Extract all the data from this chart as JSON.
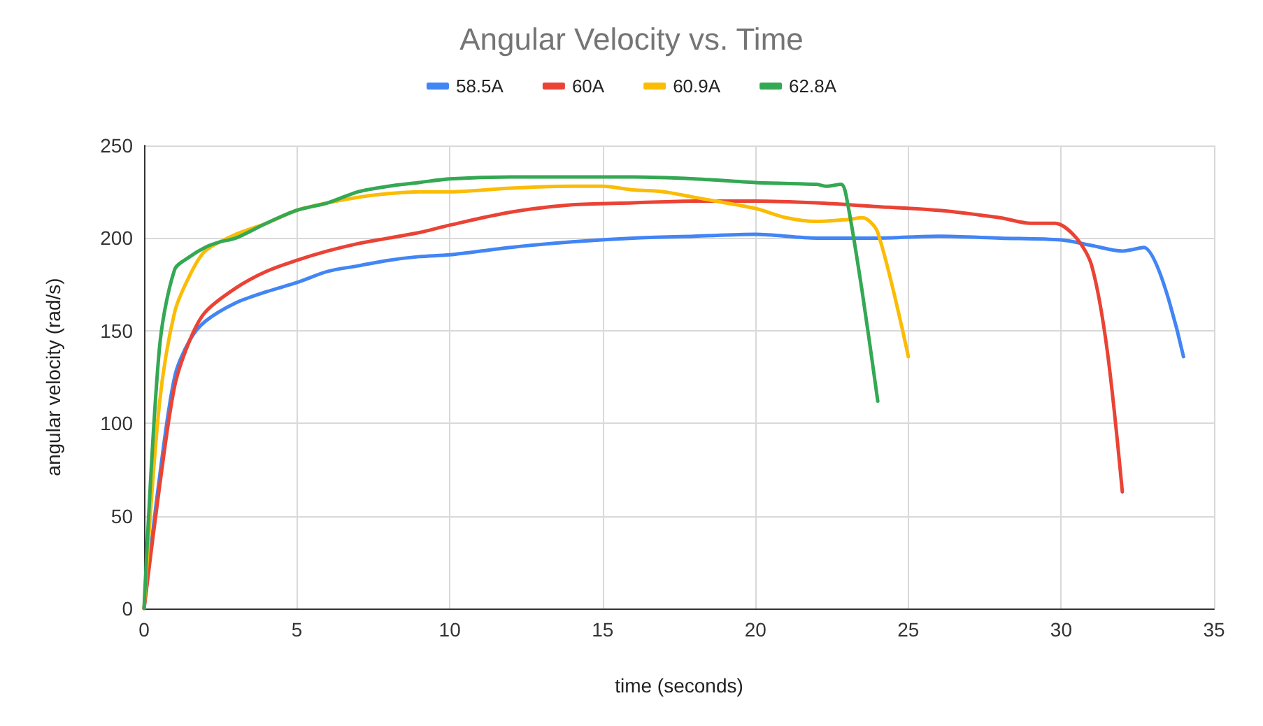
{
  "chart_data": {
    "type": "line",
    "title": "Angular Velocity vs. Time",
    "xlabel": "time (seconds)",
    "ylabel": "angular velocity (rad/s)",
    "xlim": [
      0,
      35
    ],
    "xticks": [
      0,
      5,
      10,
      15,
      20,
      25,
      30,
      35
    ],
    "ylim": [
      0,
      250
    ],
    "yticks": [
      0,
      50,
      100,
      150,
      200,
      250
    ],
    "grid": true,
    "legend": "top",
    "marker": "none",
    "line_style": "solid",
    "series": [
      {
        "name": "58.5A",
        "color": "#4285f4",
        "x": [
          0,
          0.5,
          1,
          1.5,
          2,
          3,
          4,
          5,
          6,
          7,
          8,
          9,
          10,
          12,
          14,
          16,
          18,
          20,
          22,
          24,
          26,
          28,
          30,
          31,
          32,
          32.7,
          34
        ],
        "values": [
          0,
          70,
          125,
          145,
          155,
          165,
          171,
          176,
          182,
          185,
          188,
          190,
          191,
          195,
          198,
          200,
          201,
          202,
          200,
          200,
          201,
          200,
          199,
          196,
          193,
          195,
          136
        ]
      },
      {
        "name": "60A",
        "color": "#ea4335",
        "x": [
          0,
          0.5,
          1,
          1.5,
          2,
          3,
          4,
          5,
          6,
          7,
          8,
          9,
          10,
          12,
          14,
          16,
          18,
          20,
          22,
          24,
          26,
          28,
          29,
          29.8,
          30.5,
          31,
          31.5,
          32
        ],
        "values": [
          0,
          65,
          120,
          145,
          160,
          173,
          182,
          188,
          193,
          197,
          200,
          203,
          207,
          214,
          218,
          219,
          220,
          220,
          219,
          217,
          215,
          211,
          208,
          208,
          200,
          185,
          140,
          63
        ]
      },
      {
        "name": "60.9A",
        "color": "#fbbc04",
        "x": [
          0,
          0.5,
          1,
          1.5,
          2,
          3,
          4,
          5,
          6,
          7,
          8,
          9,
          10,
          12,
          14,
          15,
          16,
          17,
          18,
          20,
          21,
          22,
          23,
          23.5,
          24,
          25
        ],
        "values": [
          0,
          110,
          160,
          180,
          193,
          202,
          208,
          215,
          219,
          222,
          224,
          225,
          225,
          227,
          228,
          228,
          226,
          225,
          222,
          216,
          211,
          209,
          210,
          211,
          203,
          136
        ]
      },
      {
        "name": "62.8A",
        "color": "#34a853",
        "x": [
          0,
          0.5,
          1,
          1.5,
          2,
          2.5,
          3,
          4,
          5,
          6,
          7,
          8,
          9,
          10,
          12,
          14,
          16,
          18,
          20,
          22,
          22.3,
          22.8,
          23,
          23.5,
          24
        ],
        "values": [
          0,
          140,
          183,
          190,
          195,
          198,
          200,
          208,
          215,
          219,
          225,
          228,
          230,
          232,
          233,
          233,
          233,
          232,
          230,
          229,
          228,
          229,
          220,
          170,
          112
        ]
      }
    ]
  }
}
